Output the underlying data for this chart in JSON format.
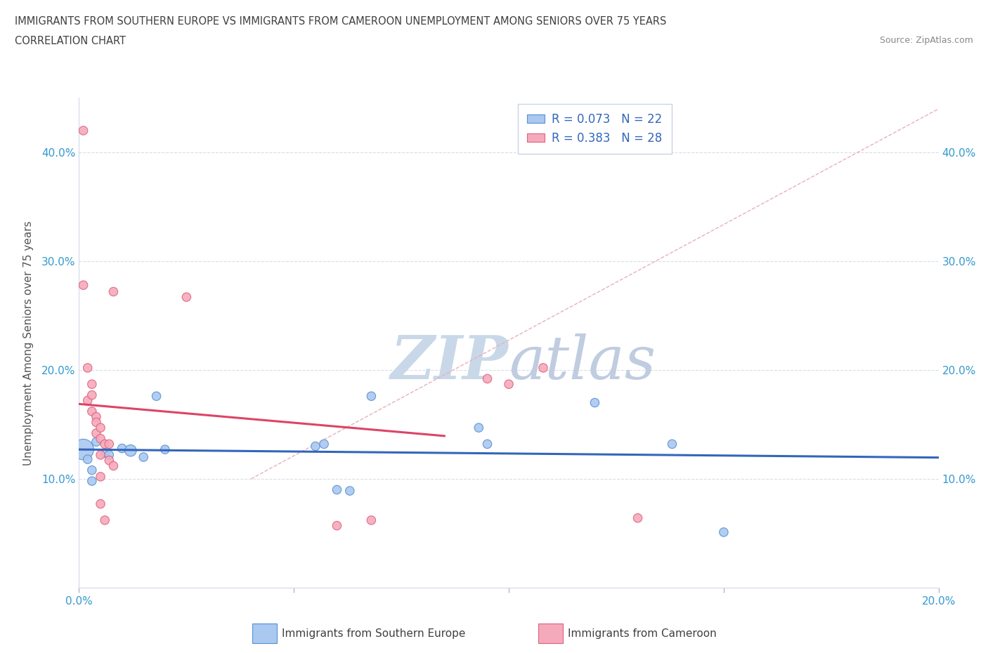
{
  "title_line1": "IMMIGRANTS FROM SOUTHERN EUROPE VS IMMIGRANTS FROM CAMEROON UNEMPLOYMENT AMONG SENIORS OVER 75 YEARS",
  "title_line2": "CORRELATION CHART",
  "source": "Source: ZipAtlas.com",
  "ylabel": "Unemployment Among Seniors over 75 years",
  "xlim": [
    0,
    0.2
  ],
  "ylim": [
    0,
    0.45
  ],
  "xticks": [
    0.0,
    0.05,
    0.1,
    0.15,
    0.2
  ],
  "yticks": [
    0.0,
    0.1,
    0.2,
    0.3,
    0.4
  ],
  "xtick_labels": [
    "0.0%",
    "",
    "",
    "",
    "20.0%"
  ],
  "ytick_labels": [
    "",
    "10.0%",
    "20.0%",
    "30.0%",
    "40.0%"
  ],
  "R_blue": 0.073,
  "N_blue": 22,
  "R_pink": 0.383,
  "N_pink": 28,
  "legend_label_blue": "Immigrants from Southern Europe",
  "legend_label_pink": "Immigrants from Cameroon",
  "color_blue": "#aac8f0",
  "color_pink": "#f5aabb",
  "edge_color_blue": "#5590d0",
  "edge_color_pink": "#e06080",
  "trendline_blue": "#3366bb",
  "trendline_pink": "#dd4466",
  "diag_color": "#c8c8d8",
  "watermark_color": "#c8d8e8",
  "blue_points": [
    [
      0.001,
      0.127
    ],
    [
      0.002,
      0.118
    ],
    [
      0.003,
      0.098
    ],
    [
      0.003,
      0.108
    ],
    [
      0.004,
      0.134
    ],
    [
      0.006,
      0.124
    ],
    [
      0.007,
      0.122
    ],
    [
      0.01,
      0.128
    ],
    [
      0.012,
      0.126
    ],
    [
      0.015,
      0.12
    ],
    [
      0.018,
      0.176
    ],
    [
      0.02,
      0.127
    ],
    [
      0.055,
      0.13
    ],
    [
      0.057,
      0.132
    ],
    [
      0.06,
      0.09
    ],
    [
      0.063,
      0.089
    ],
    [
      0.068,
      0.176
    ],
    [
      0.093,
      0.147
    ],
    [
      0.095,
      0.132
    ],
    [
      0.12,
      0.17
    ],
    [
      0.138,
      0.132
    ],
    [
      0.15,
      0.051
    ]
  ],
  "blue_sizes": [
    450,
    80,
    80,
    80,
    80,
    80,
    80,
    80,
    140,
    80,
    80,
    80,
    80,
    80,
    80,
    80,
    80,
    80,
    80,
    80,
    80,
    80
  ],
  "pink_points": [
    [
      0.001,
      0.42
    ],
    [
      0.001,
      0.278
    ],
    [
      0.002,
      0.172
    ],
    [
      0.002,
      0.202
    ],
    [
      0.003,
      0.187
    ],
    [
      0.003,
      0.177
    ],
    [
      0.003,
      0.162
    ],
    [
      0.004,
      0.157
    ],
    [
      0.004,
      0.152
    ],
    [
      0.004,
      0.142
    ],
    [
      0.005,
      0.147
    ],
    [
      0.005,
      0.137
    ],
    [
      0.005,
      0.122
    ],
    [
      0.005,
      0.102
    ],
    [
      0.005,
      0.077
    ],
    [
      0.006,
      0.132
    ],
    [
      0.006,
      0.062
    ],
    [
      0.007,
      0.132
    ],
    [
      0.007,
      0.117
    ],
    [
      0.008,
      0.272
    ],
    [
      0.008,
      0.112
    ],
    [
      0.025,
      0.267
    ],
    [
      0.06,
      0.057
    ],
    [
      0.068,
      0.062
    ],
    [
      0.095,
      0.192
    ],
    [
      0.1,
      0.187
    ],
    [
      0.108,
      0.202
    ],
    [
      0.13,
      0.064
    ]
  ],
  "pink_sizes": [
    80,
    80,
    80,
    80,
    80,
    80,
    80,
    80,
    80,
    80,
    80,
    80,
    80,
    80,
    80,
    80,
    80,
    80,
    80,
    80,
    80,
    80,
    80,
    80,
    80,
    80,
    80,
    80
  ]
}
